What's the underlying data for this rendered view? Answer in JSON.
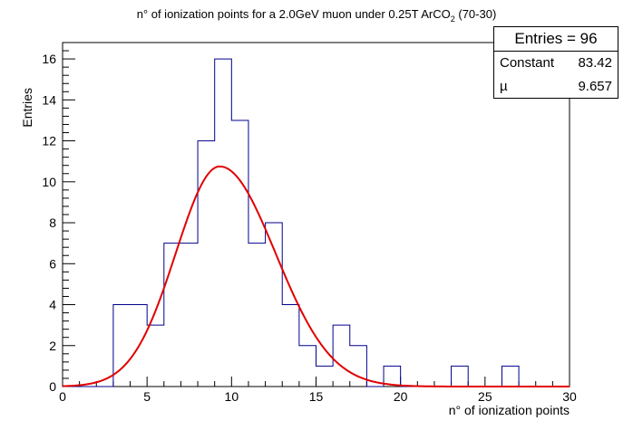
{
  "chart_data": {
    "type": "histogram",
    "title_main": "n° of ionization points for a 2.0GeV muon under 0.25T ArCO",
    "title_sub": "2",
    "title_tail": " (70-30)",
    "xlabel": "n° of ionization points",
    "ylabel": "Entries",
    "xlim": [
      0,
      30
    ],
    "ylim": [
      0,
      16.8
    ],
    "xticks": [
      0,
      5,
      10,
      15,
      20,
      25,
      30
    ],
    "yticks": [
      0,
      2,
      4,
      6,
      8,
      10,
      12,
      14,
      16
    ],
    "bin_width": 1,
    "bins": [
      {
        "x": 0,
        "value": 0
      },
      {
        "x": 1,
        "value": 0
      },
      {
        "x": 2,
        "value": 0
      },
      {
        "x": 3,
        "value": 4
      },
      {
        "x": 4,
        "value": 4
      },
      {
        "x": 5,
        "value": 3
      },
      {
        "x": 6,
        "value": 7
      },
      {
        "x": 7,
        "value": 7
      },
      {
        "x": 8,
        "value": 12
      },
      {
        "x": 9,
        "value": 16
      },
      {
        "x": 10,
        "value": 13
      },
      {
        "x": 11,
        "value": 7
      },
      {
        "x": 12,
        "value": 8
      },
      {
        "x": 13,
        "value": 4
      },
      {
        "x": 14,
        "value": 2
      },
      {
        "x": 15,
        "value": 1
      },
      {
        "x": 16,
        "value": 3
      },
      {
        "x": 17,
        "value": 2
      },
      {
        "x": 18,
        "value": 0
      },
      {
        "x": 19,
        "value": 1
      },
      {
        "x": 20,
        "value": 0
      },
      {
        "x": 21,
        "value": 0
      },
      {
        "x": 22,
        "value": 0
      },
      {
        "x": 23,
        "value": 1
      },
      {
        "x": 24,
        "value": 0
      },
      {
        "x": 25,
        "value": 0
      },
      {
        "x": 26,
        "value": 1
      },
      {
        "x": 27,
        "value": 0
      },
      {
        "x": 28,
        "value": 0
      },
      {
        "x": 29,
        "value": 0
      }
    ],
    "fit": {
      "type": "landau-like",
      "peak_x": 9.3,
      "peak_y": 10.75,
      "sigma_left": 2.6,
      "sigma_right": 3.3
    },
    "histogram_color": "#00008b",
    "fit_color": "#e00000",
    "stats": {
      "entries_label": "Entries = 96",
      "constant_label": "Constant",
      "constant_value": "83.42",
      "mu_label": "µ",
      "mu_value": "9.657"
    }
  }
}
